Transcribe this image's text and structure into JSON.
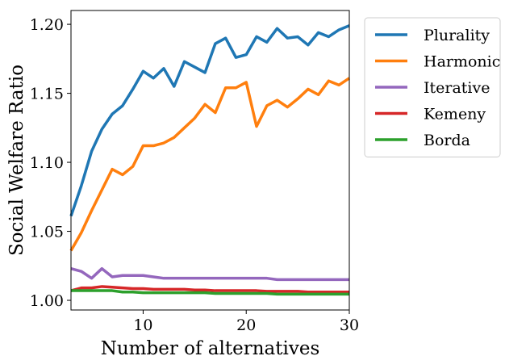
{
  "chart_data": {
    "type": "line",
    "title": "",
    "xlabel": "Number of alternatives",
    "ylabel": "Social Welfare Ratio",
    "xlim": [
      3,
      30
    ],
    "ylim": [
      0.993,
      1.21
    ],
    "x_ticks": [
      10,
      20,
      30
    ],
    "y_ticks": [
      1.0,
      1.05,
      1.1,
      1.15,
      1.2
    ],
    "y_tick_labels": [
      "1.00",
      "1.05",
      "1.10",
      "1.15",
      "1.20"
    ],
    "grid": false,
    "legend_position": "outside-top-right",
    "x": [
      3,
      4,
      5,
      6,
      7,
      8,
      9,
      10,
      11,
      12,
      13,
      14,
      15,
      16,
      17,
      18,
      19,
      20,
      21,
      22,
      23,
      24,
      25,
      26,
      27,
      28,
      29,
      30
    ],
    "series": [
      {
        "name": "Plurality",
        "color": "#1f77b4",
        "values": [
          1.061,
          1.083,
          1.108,
          1.124,
          1.135,
          1.141,
          1.153,
          1.166,
          1.161,
          1.168,
          1.155,
          1.173,
          1.169,
          1.165,
          1.186,
          1.19,
          1.176,
          1.178,
          1.191,
          1.187,
          1.197,
          1.19,
          1.191,
          1.185,
          1.194,
          1.191,
          1.196,
          1.199
        ]
      },
      {
        "name": "Harmonic",
        "color": "#ff7f0e",
        "values": [
          1.036,
          1.049,
          1.065,
          1.08,
          1.095,
          1.091,
          1.097,
          1.112,
          1.112,
          1.114,
          1.118,
          1.125,
          1.132,
          1.142,
          1.136,
          1.154,
          1.154,
          1.158,
          1.126,
          1.141,
          1.145,
          1.14,
          1.146,
          1.153,
          1.149,
          1.159,
          1.156,
          1.161
        ]
      },
      {
        "name": "Iterative",
        "color": "#9467bd",
        "values": [
          1.023,
          1.021,
          1.016,
          1.023,
          1.017,
          1.018,
          1.018,
          1.018,
          1.017,
          1.016,
          1.016,
          1.016,
          1.016,
          1.016,
          1.016,
          1.016,
          1.016,
          1.016,
          1.016,
          1.016,
          1.015,
          1.015,
          1.015,
          1.015,
          1.015,
          1.015,
          1.015,
          1.015
        ]
      },
      {
        "name": "Kemeny",
        "color": "#d62728",
        "values": [
          1.007,
          1.009,
          1.009,
          1.01,
          1.0095,
          1.009,
          1.0085,
          1.0085,
          1.008,
          1.008,
          1.008,
          1.008,
          1.0075,
          1.0075,
          1.007,
          1.007,
          1.007,
          1.007,
          1.007,
          1.0065,
          1.0065,
          1.0065,
          1.0065,
          1.006,
          1.006,
          1.006,
          1.006,
          1.006
        ]
      },
      {
        "name": "Borda",
        "color": "#2ca02c",
        "values": [
          1.007,
          1.007,
          1.007,
          1.007,
          1.007,
          1.006,
          1.006,
          1.0055,
          1.0055,
          1.0055,
          1.0055,
          1.0055,
          1.0055,
          1.0055,
          1.005,
          1.005,
          1.005,
          1.005,
          1.005,
          1.005,
          1.0045,
          1.0045,
          1.0045,
          1.0045,
          1.0045,
          1.0045,
          1.0045,
          1.0045
        ]
      }
    ]
  }
}
